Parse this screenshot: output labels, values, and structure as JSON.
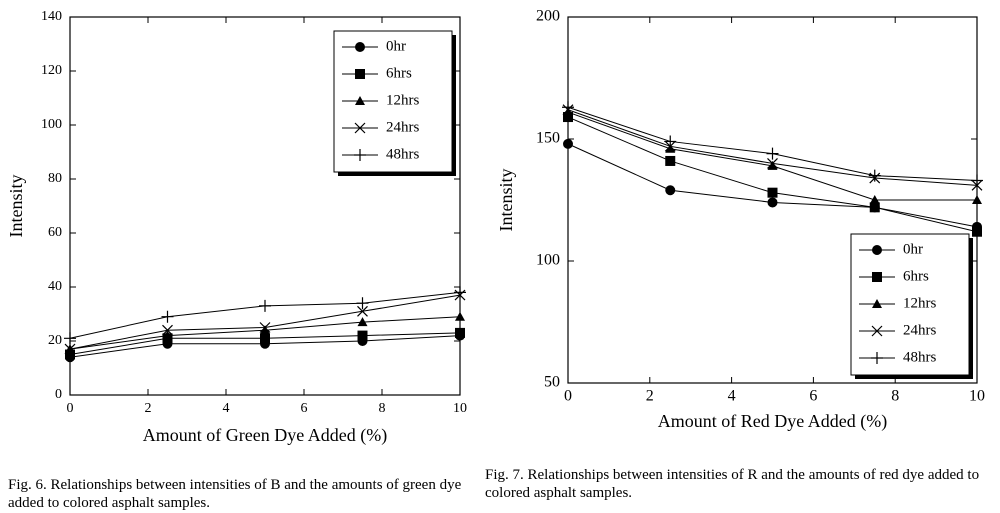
{
  "chart_data": [
    {
      "type": "line",
      "caption": "Fig. 6. Relationships between intensities of B and the amounts of green dye added to colored asphalt samples.",
      "xlabel": "Amount of Green Dye Added (%)",
      "ylabel": "Intensity",
      "x": [
        0,
        2.5,
        5,
        7.5,
        10
      ],
      "xlim": [
        0,
        10
      ],
      "xticks": [
        0,
        2,
        4,
        6,
        8,
        10
      ],
      "ylim": [
        0,
        140
      ],
      "yticks": [
        0,
        20,
        40,
        60,
        80,
        100,
        120,
        140
      ],
      "legend": "upper right",
      "series": [
        {
          "name": "0hr",
          "marker": "circle",
          "color": "#000000",
          "values": [
            14,
            19,
            19,
            20,
            22
          ]
        },
        {
          "name": "6hrs",
          "marker": "square",
          "color": "#000000",
          "values": [
            15,
            21,
            21,
            22,
            23
          ]
        },
        {
          "name": "12hrs",
          "marker": "triangle",
          "color": "#000000",
          "values": [
            17,
            22,
            24,
            27,
            29
          ]
        },
        {
          "name": "24hrs",
          "marker": "x",
          "color": "#000000",
          "values": [
            17,
            24,
            25,
            31,
            37
          ]
        },
        {
          "name": "48hrs",
          "marker": "plus",
          "color": "#000000",
          "values": [
            21,
            29,
            33,
            34,
            38
          ]
        }
      ]
    },
    {
      "type": "line",
      "caption": "Fig. 7. Relationships between intensities of R and the amounts of red dye added to colored asphalt samples.",
      "xlabel": "Amount of Red Dye Added (%)",
      "ylabel": "Intensity",
      "x": [
        0,
        2.5,
        5,
        7.5,
        10
      ],
      "xlim": [
        0,
        10
      ],
      "xticks": [
        0,
        2,
        4,
        6,
        8,
        10
      ],
      "ylim": [
        50,
        200
      ],
      "yticks": [
        50,
        100,
        150,
        200
      ],
      "legend": "lower right",
      "series": [
        {
          "name": "0hr",
          "marker": "circle",
          "color": "#000000",
          "values": [
            148,
            129,
            124,
            122,
            114
          ]
        },
        {
          "name": "6hrs",
          "marker": "square",
          "color": "#000000",
          "values": [
            159,
            141,
            128,
            122,
            112
          ]
        },
        {
          "name": "12hrs",
          "marker": "triangle",
          "color": "#000000",
          "values": [
            161,
            146,
            139,
            125,
            125
          ]
        },
        {
          "name": "24hrs",
          "marker": "x",
          "color": "#000000",
          "values": [
            162,
            147,
            140,
            134,
            131
          ]
        },
        {
          "name": "48hrs",
          "marker": "plus",
          "color": "#000000",
          "values": [
            163,
            149,
            144,
            135,
            133
          ]
        }
      ]
    }
  ]
}
